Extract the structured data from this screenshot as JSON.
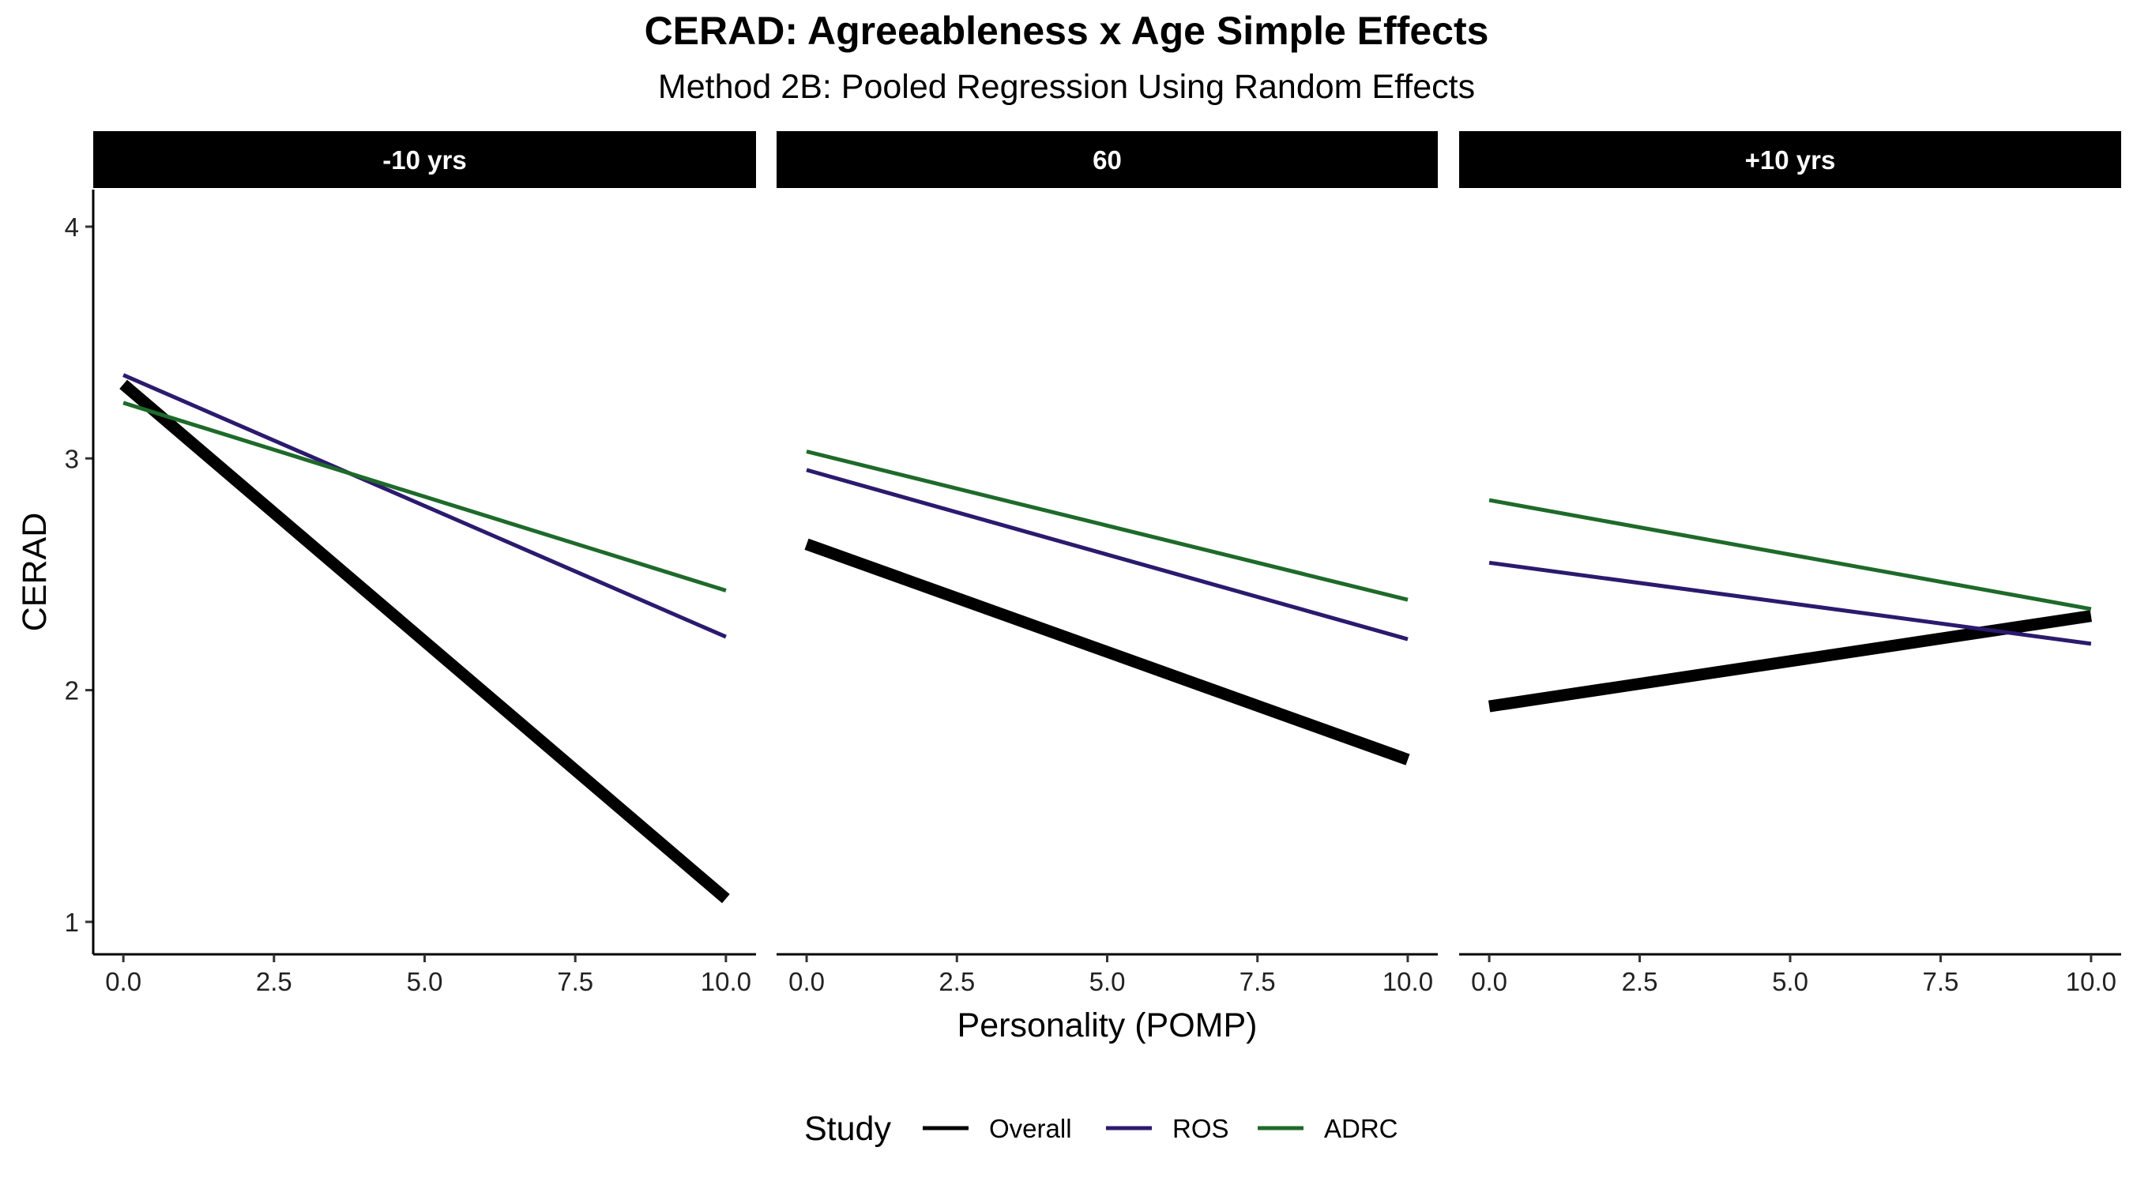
{
  "chart_data": {
    "type": "line",
    "title": "CERAD: Agreeableness x Age Simple Effects",
    "subtitle": "Method 2B: Pooled Regression Using Random Effects",
    "xlabel": "Personality (POMP)",
    "ylabel": "CERAD",
    "xlim": [
      -0.5,
      10.5
    ],
    "ylim": [
      0.86,
      4.16
    ],
    "x_ticks": [
      "0.0",
      "2.5",
      "5.0",
      "7.5",
      "10.0"
    ],
    "x_tick_values": [
      0,
      2.5,
      5,
      7.5,
      10
    ],
    "y_ticks": [
      "1",
      "2",
      "3",
      "4"
    ],
    "y_tick_values": [
      1,
      2,
      3,
      4
    ],
    "grid": false,
    "legend": {
      "title": "Study",
      "position": "bottom",
      "entries": [
        "Overall",
        "ROS",
        "ADRC"
      ]
    },
    "colors": {
      "Overall": "#000000",
      "ROS": "#2b1a6e",
      "ADRC": "#1e6a2a"
    },
    "facets": [
      {
        "label": "-10 yrs",
        "series": [
          {
            "name": "Overall",
            "x": [
              0,
              10
            ],
            "values": [
              3.32,
              1.1
            ]
          },
          {
            "name": "ROS",
            "x": [
              0,
              10
            ],
            "values": [
              3.36,
              2.23
            ]
          },
          {
            "name": "ADRC",
            "x": [
              0,
              10
            ],
            "values": [
              3.24,
              2.43
            ]
          }
        ]
      },
      {
        "label": "60",
        "series": [
          {
            "name": "Overall",
            "x": [
              0,
              10
            ],
            "values": [
              2.63,
              1.7
            ]
          },
          {
            "name": "ROS",
            "x": [
              0,
              10
            ],
            "values": [
              2.95,
              2.22
            ]
          },
          {
            "name": "ADRC",
            "x": [
              0,
              10
            ],
            "values": [
              3.03,
              2.39
            ]
          }
        ]
      },
      {
        "label": "+10 yrs",
        "series": [
          {
            "name": "Overall",
            "x": [
              0,
              10
            ],
            "values": [
              1.93,
              2.32
            ]
          },
          {
            "name": "ROS",
            "x": [
              0,
              10
            ],
            "values": [
              2.55,
              2.2
            ]
          },
          {
            "name": "ADRC",
            "x": [
              0,
              10
            ],
            "values": [
              2.82,
              2.35
            ]
          }
        ]
      }
    ]
  }
}
